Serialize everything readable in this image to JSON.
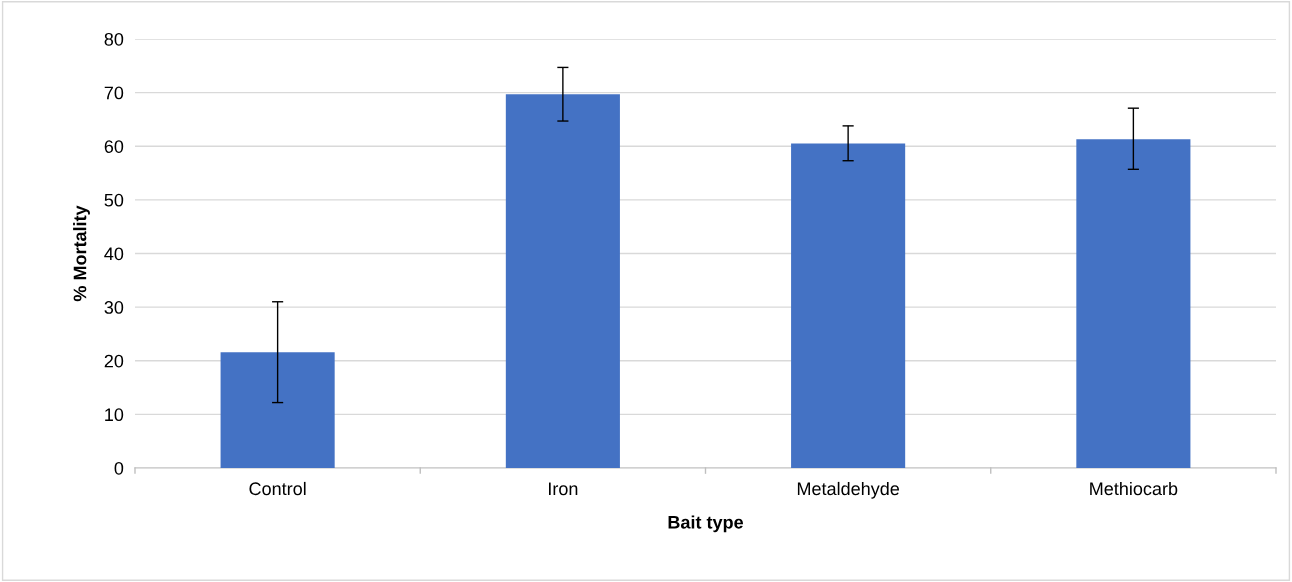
{
  "chart_data": {
    "type": "bar",
    "xlabel": "Bait type",
    "ylabel": "% Mortality",
    "categories": [
      "Control",
      "Iron",
      "Metaldehyde",
      "Methiocarb"
    ],
    "values": [
      21.6,
      69.7,
      60.5,
      61.3
    ],
    "errors": [
      [
        12.2,
        31.0
      ],
      [
        64.7,
        74.7
      ],
      [
        57.3,
        63.8
      ],
      [
        55.7,
        67.1
      ]
    ],
    "color": "#4472c4",
    "ylim": [
      0,
      80
    ],
    "yticks": [
      0,
      10,
      20,
      30,
      40,
      50,
      60,
      70,
      80
    ],
    "grid": "y"
  }
}
